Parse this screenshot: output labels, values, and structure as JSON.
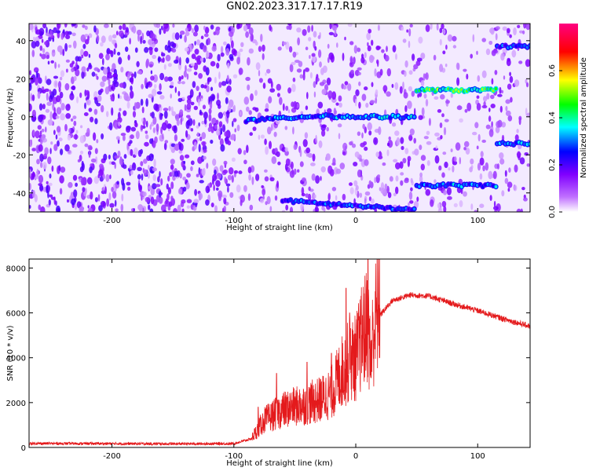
{
  "title": "GN02.2023.317.17.17.R19",
  "colors": {
    "line": "#e41a1c",
    "frame": "#000000",
    "background": "#ffffff"
  },
  "chart_data": [
    {
      "type": "heatmap",
      "xlabel": "Height of straight line (km)",
      "ylabel": "Frequency (Hz)",
      "colorbar_label": "Normalized spectral amplitude",
      "xlim": [
        -268,
        143
      ],
      "ylim": [
        -50,
        49
      ],
      "x_ticks": [
        -200,
        -100,
        0,
        100
      ],
      "y_ticks": [
        -40,
        -20,
        0,
        20,
        40
      ],
      "colorbar_ticks": [
        0.0,
        0.2,
        0.4,
        0.6
      ],
      "colorbar_range": [
        0.0,
        0.8
      ],
      "colormap": [
        "#ffffff",
        "#8000ff",
        "#0000ff",
        "#00ffff",
        "#00ff00",
        "#ffff00",
        "#ff0000",
        "#ff0080"
      ],
      "tones": [
        {
          "x_start": -90,
          "x_end": -20,
          "freq_start": -2,
          "freq_end": 1,
          "amplitude": 0.28
        },
        {
          "x_start": -20,
          "x_end": 48,
          "freq_start": 0,
          "freq_end": 0,
          "amplitude": 0.3
        },
        {
          "x_start": 50,
          "x_end": 115,
          "freq_start": 14,
          "freq_end": 14,
          "amplitude": 0.45
        },
        {
          "x_start": 50,
          "x_end": 115,
          "freq_start": -36,
          "freq_end": -36,
          "amplitude": 0.3
        },
        {
          "x_start": 116,
          "x_end": 143,
          "freq_start": 37,
          "freq_end": 37,
          "amplitude": 0.25
        },
        {
          "x_start": 116,
          "x_end": 143,
          "freq_start": -14,
          "freq_end": -14,
          "amplitude": 0.3
        },
        {
          "x_start": -60,
          "x_end": 48,
          "freq_start": -44,
          "freq_end": -49,
          "amplitude": 0.25
        }
      ]
    },
    {
      "type": "line",
      "xlabel": "Height of straight line (km)",
      "ylabel": "SNR (10 * v/v)",
      "xlim": [
        -268,
        143
      ],
      "ylim": [
        0,
        8400
      ],
      "x_ticks": [
        -200,
        -100,
        0,
        100
      ],
      "y_ticks": [
        0,
        2000,
        4000,
        6000,
        8000
      ],
      "series": [
        {
          "x": [
            -268,
            -200,
            -150,
            -100,
            -85,
            -75,
            -60,
            -45,
            -30,
            -20,
            -12,
            -5,
            0,
            5,
            10,
            12,
            15,
            20,
            30,
            45,
            60,
            80,
            100,
            120,
            143
          ],
          "y": [
            180,
            170,
            160,
            170,
            400,
            1100,
            1500,
            1700,
            1900,
            2200,
            3000,
            3500,
            3600,
            4400,
            5000,
            3500,
            4800,
            5900,
            6550,
            6800,
            6750,
            6400,
            6100,
            5750,
            5400
          ],
          "noise_peaks": [
            [
              -80,
              1800
            ],
            [
              -65,
              3300
            ],
            [
              -40,
              3800
            ],
            [
              -20,
              4200
            ],
            [
              -8,
              7100
            ],
            [
              10,
              8400
            ],
            [
              -5,
              6000
            ]
          ]
        }
      ]
    }
  ]
}
